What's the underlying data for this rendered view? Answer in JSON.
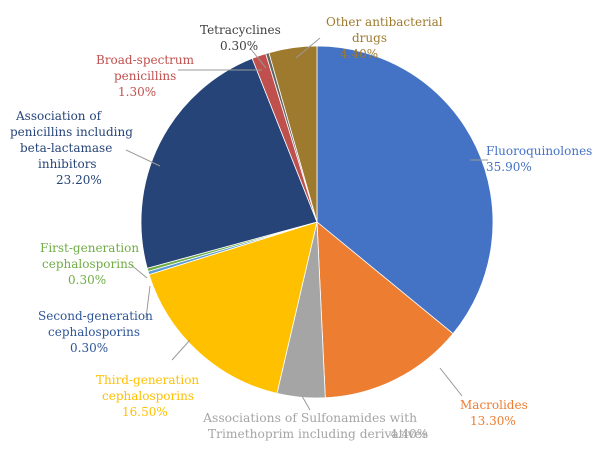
{
  "chart_data": {
    "type": "pie",
    "title": "",
    "start_angle_deg": 0,
    "direction": "clockwise",
    "legend": "none (labels beside slices)",
    "slices": [
      {
        "name": "Fluoroquinolones",
        "value": 35.9,
        "value_label": "35.90%",
        "color": "#4472C4",
        "label_color": "#4472C4"
      },
      {
        "name": "Macrolides",
        "value": 13.3,
        "value_label": "13.30%",
        "color": "#ED7D31",
        "label_color": "#ED7D31"
      },
      {
        "name": "Associations of Sulfonamides with Trimethoprim including derivatives",
        "value": 4.4,
        "value_label": "4.40%",
        "color": "#A5A5A5",
        "label_color": "#A5A5A5"
      },
      {
        "name": "Third-generation cephalosporins",
        "value": 16.5,
        "value_label": "16.50%",
        "color": "#FFC000",
        "label_color": "#FFC000"
      },
      {
        "name": "Second-generation cephalosporins",
        "value": 0.3,
        "value_label": "0.30%",
        "color": "#5B9BD5",
        "label_color": "#2E5597"
      },
      {
        "name": "First-generation cephalosporins",
        "value": 0.3,
        "value_label": "0.30%",
        "color": "#70AD47",
        "label_color": "#70AD47"
      },
      {
        "name": "Association of penicillins including beta-lactamase inhibitors",
        "value": 23.2,
        "value_label": "23.20%",
        "color": "#264478",
        "label_color": "#264478"
      },
      {
        "name": "Broad-spectrum penicillins",
        "value": 1.3,
        "value_label": "1.30%",
        "color": "#C0504D",
        "label_color": "#C0504D"
      },
      {
        "name": "Tetracyclines",
        "value": 0.3,
        "value_label": "0.30%",
        "color": "#636363",
        "label_color": "#404040"
      },
      {
        "name": "Other antibacterial drugs",
        "value": 4.4,
        "value_label": "4.40%",
        "color": "#9E7A2E",
        "label_color": "#9E7A2E"
      }
    ]
  }
}
